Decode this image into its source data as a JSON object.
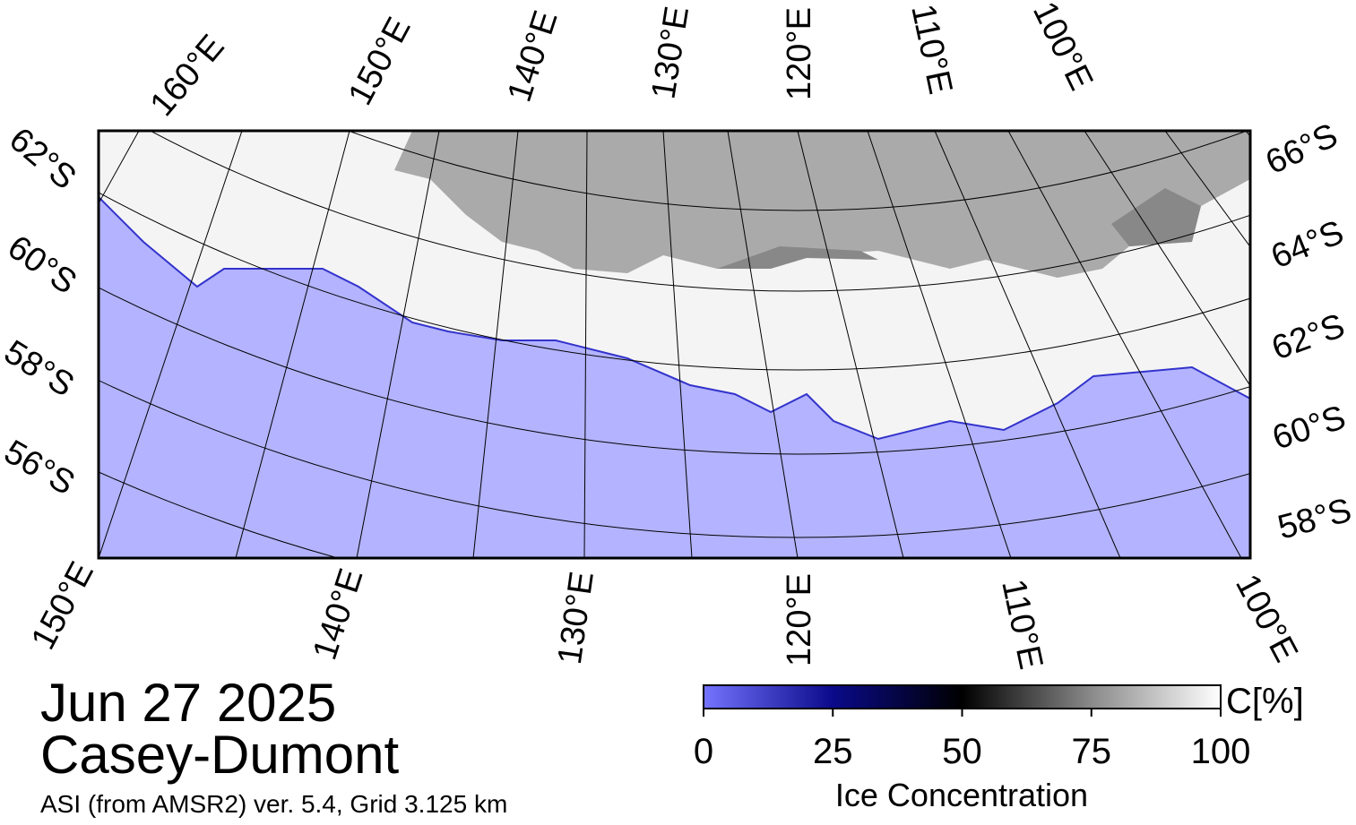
{
  "map": {
    "top_labels": [
      "160°E",
      "150°E",
      "140°E",
      "130°E",
      "120°E",
      "110°E",
      "100°E"
    ],
    "left_labels": [
      "62°S",
      "60°S",
      "58°S",
      "56°S"
    ],
    "right_labels": [
      "66°S",
      "64°S",
      "62°S",
      "60°S",
      "58°S"
    ],
    "bottom_labels": [
      "150°E",
      "140°E",
      "130°E",
      "120°E",
      "110°E",
      "100°E"
    ]
  },
  "header": {
    "date": "Jun 27 2025",
    "region": "Casey-Dumont",
    "source": "ASI (from AMSR2) ver. 5.4,  Grid 3.125 km"
  },
  "colorbar": {
    "label": "Ice Concentration",
    "unit": "C[%]",
    "lim": [
      0,
      100
    ],
    "ticks": [
      0,
      25,
      50,
      75,
      100
    ]
  }
}
